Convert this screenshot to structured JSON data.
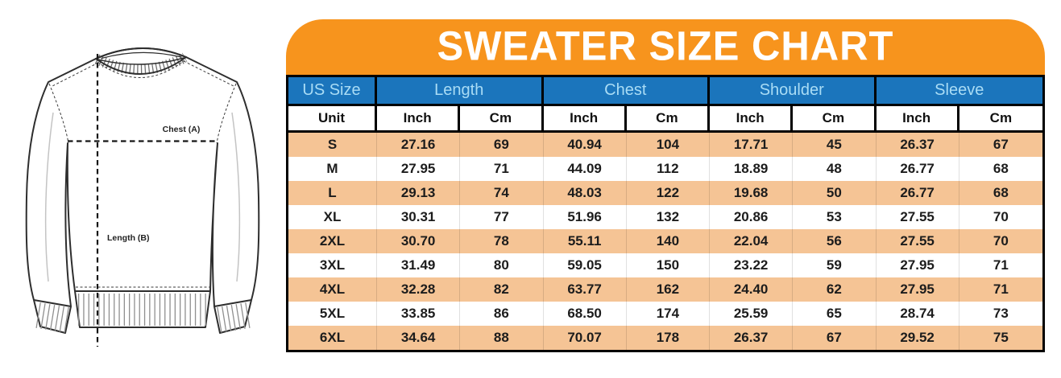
{
  "title": "SWEATER SIZE CHART",
  "diagram": {
    "chest_label": "Chest (A)",
    "length_label": "Length (B)"
  },
  "table": {
    "group_headers": [
      {
        "label": "US Size"
      },
      {
        "label": "Length"
      },
      {
        "label": "Chest"
      },
      {
        "label": "Shoulder"
      },
      {
        "label": "Sleeve"
      }
    ],
    "unit_row": [
      "Unit",
      "Inch",
      "Cm",
      "Inch",
      "Cm",
      "Inch",
      "Cm",
      "Inch",
      "Cm"
    ],
    "rows": [
      {
        "size": "S",
        "values": [
          "27.16",
          "69",
          "40.94",
          "104",
          "17.71",
          "45",
          "26.37",
          "67"
        ]
      },
      {
        "size": "M",
        "values": [
          "27.95",
          "71",
          "44.09",
          "112",
          "18.89",
          "48",
          "26.77",
          "68"
        ]
      },
      {
        "size": "L",
        "values": [
          "29.13",
          "74",
          "48.03",
          "122",
          "19.68",
          "50",
          "26.77",
          "68"
        ]
      },
      {
        "size": "XL",
        "values": [
          "30.31",
          "77",
          "51.96",
          "132",
          "20.86",
          "53",
          "27.55",
          "70"
        ]
      },
      {
        "size": "2XL",
        "values": [
          "30.70",
          "78",
          "55.11",
          "140",
          "22.04",
          "56",
          "27.55",
          "70"
        ]
      },
      {
        "size": "3XL",
        "values": [
          "31.49",
          "80",
          "59.05",
          "150",
          "23.22",
          "59",
          "27.95",
          "71"
        ]
      },
      {
        "size": "4XL",
        "values": [
          "32.28",
          "82",
          "63.77",
          "162",
          "24.40",
          "62",
          "27.95",
          "71"
        ]
      },
      {
        "size": "5XL",
        "values": [
          "33.85",
          "86",
          "68.50",
          "174",
          "25.59",
          "65",
          "28.74",
          "73"
        ]
      },
      {
        "size": "6XL",
        "values": [
          "34.64",
          "88",
          "70.07",
          "178",
          "26.37",
          "67",
          "29.52",
          "75"
        ]
      }
    ]
  },
  "colors": {
    "banner_orange": "#F7941D",
    "header_blue": "#1B75BC",
    "header_text": "#A9DCF5",
    "row_peach": "#F5C495",
    "line_dark": "#1A1A1A"
  }
}
